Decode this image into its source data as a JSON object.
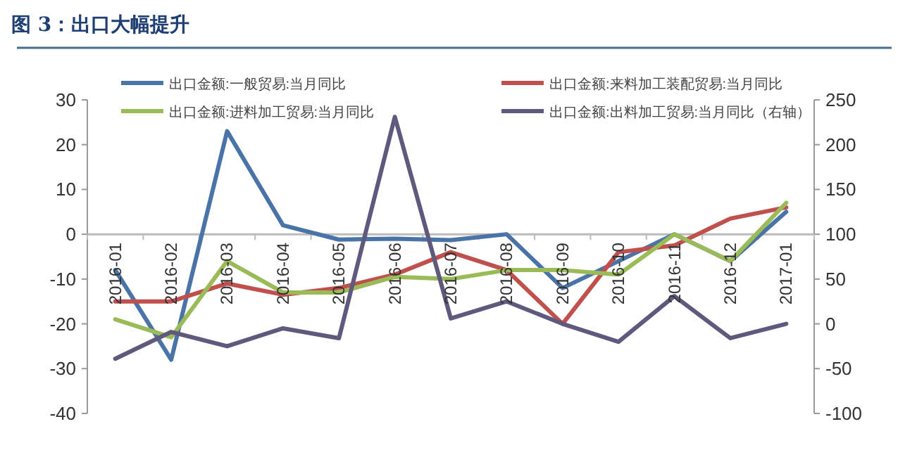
{
  "chart_data": {
    "type": "line",
    "title": "图 3：出口大幅提升",
    "categories": [
      "2016-01",
      "2016-02",
      "2016-03",
      "2016-04",
      "2016-05",
      "2016-06",
      "2016-07",
      "2016-08",
      "2016-09",
      "2016-10",
      "2016-11",
      "2016-12",
      "2017-01"
    ],
    "series": [
      {
        "name": "出口金额:一般贸易:当月同比",
        "color": "#4a73a8",
        "values": [
          -8,
          -28,
          23,
          2,
          -1.2,
          -1,
          -1.3,
          0,
          -12,
          -6,
          0,
          -6,
          5
        ]
      },
      {
        "name": "出口金额:来料加工装配贸易:当月同比",
        "color": "#c0504d",
        "values": [
          -15,
          -15,
          -11,
          -13.5,
          -12,
          -9,
          -4,
          -8,
          -20,
          -4,
          -2.5,
          3.5,
          6
        ]
      },
      {
        "name": "出口金额:进料加工贸易:当月同比",
        "color": "#9bbb59",
        "values": [
          -19,
          -23,
          -6,
          -13,
          -13,
          -9.5,
          -10,
          -8,
          -8,
          -9,
          0,
          -6,
          7
        ]
      },
      {
        "name": "出口金额:出料加工贸易:当月同比（右轴）",
        "color": "#5f5a7d",
        "axis": "y2",
        "values": [
          -39,
          -9,
          -25,
          -5,
          -16,
          231,
          6,
          25,
          0,
          -20,
          31,
          -16,
          0
        ]
      }
    ],
    "ylim": [
      -40,
      30
    ],
    "yticks": [
      -40,
      -30,
      -20,
      -10,
      0,
      10,
      20,
      30
    ],
    "y2lim": [
      -100,
      250
    ],
    "y2ticks": [
      -100,
      -50,
      0,
      50,
      100,
      150,
      200,
      250
    ],
    "legend": "top",
    "grid": false
  }
}
